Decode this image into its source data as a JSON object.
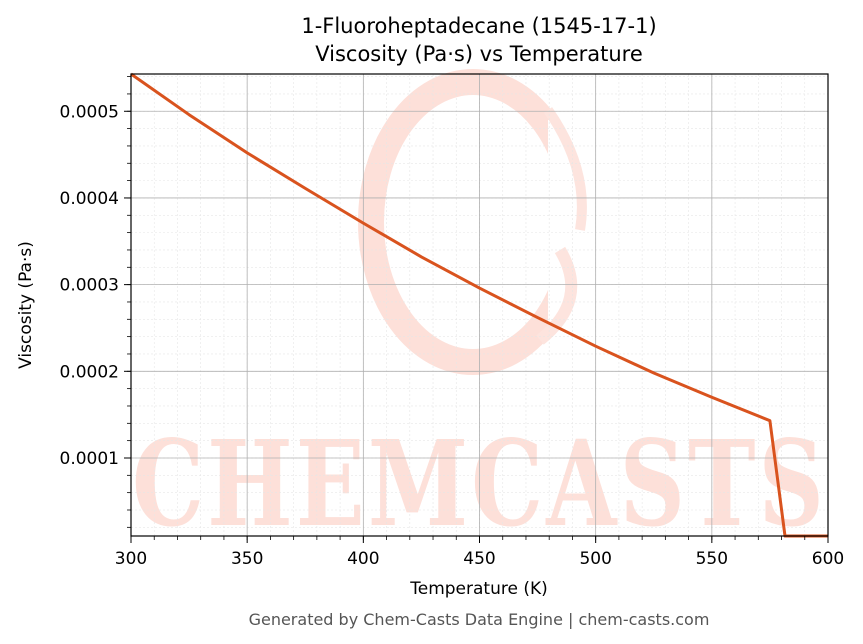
{
  "chart_data": {
    "type": "line",
    "title_lines": [
      "1-Fluoroheptadecane (1545-17-1)",
      "Viscosity (Pa·s) vs Temperature"
    ],
    "xlabel": "Temperature (K)",
    "ylabel": "Viscosity (Pa·s)",
    "xlim": [
      300,
      600
    ],
    "ylim": [
      1e-05,
      0.000543
    ],
    "x_ticks": [
      300,
      350,
      400,
      450,
      500,
      550,
      600
    ],
    "x_tick_labels": [
      "300",
      "350",
      "400",
      "450",
      "500",
      "550",
      "600"
    ],
    "y_ticks": [
      0.0001,
      0.0002,
      0.0003,
      0.0004,
      0.0005
    ],
    "y_tick_labels": [
      "0.0001",
      "0.0002",
      "0.0003",
      "0.0004",
      "0.0005"
    ],
    "grid": true,
    "minor_grid": true,
    "line_color": "#d9531e",
    "series": [
      {
        "x": [
          300,
          325,
          350,
          375,
          400,
          425,
          450,
          475,
          500,
          525,
          550,
          575,
          581.5,
          600
        ],
        "y": [
          0.000543,
          0.000496,
          0.000452,
          0.000411,
          0.000371,
          0.000332,
          0.000296,
          0.000262,
          0.000229,
          0.000198,
          0.00017,
          0.000143,
          1e-05,
          1e-05
        ]
      }
    ]
  },
  "watermark": {
    "text": "CHEMCASTS",
    "color": "#fde0d9"
  },
  "footer": "Generated by Chem-Casts Data Engine | chem-casts.com"
}
